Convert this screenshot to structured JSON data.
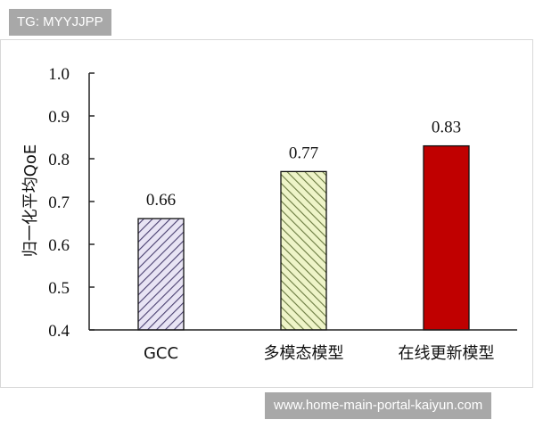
{
  "watermark_top": "TG: MYYJJPP",
  "watermark_bottom": "www.home-main-portal-kaiyun.com",
  "chart_data": {
    "type": "bar",
    "categories": [
      "GCC",
      "多模态模型",
      "在线更新模型"
    ],
    "values": [
      0.66,
      0.77,
      0.83
    ],
    "data_labels": [
      "0.66",
      "0.77",
      "0.83"
    ],
    "ylabel": "归一化平均QoE",
    "xlabel": "",
    "ylim": [
      0.4,
      1.0
    ],
    "yticks": [
      "0.4",
      "0.5",
      "0.6",
      "0.7",
      "0.8",
      "0.9",
      "1.0"
    ],
    "grid": false,
    "bar_styles": [
      {
        "pattern": "diagonal-hatch-right",
        "line_color": "#4a4070",
        "fill": "#e8e4f4"
      },
      {
        "pattern": "diagonal-hatch-left",
        "line_color": "#6a7a40",
        "fill": "#eef4c8"
      },
      {
        "pattern": "solid",
        "fill": "#c00000"
      }
    ]
  }
}
